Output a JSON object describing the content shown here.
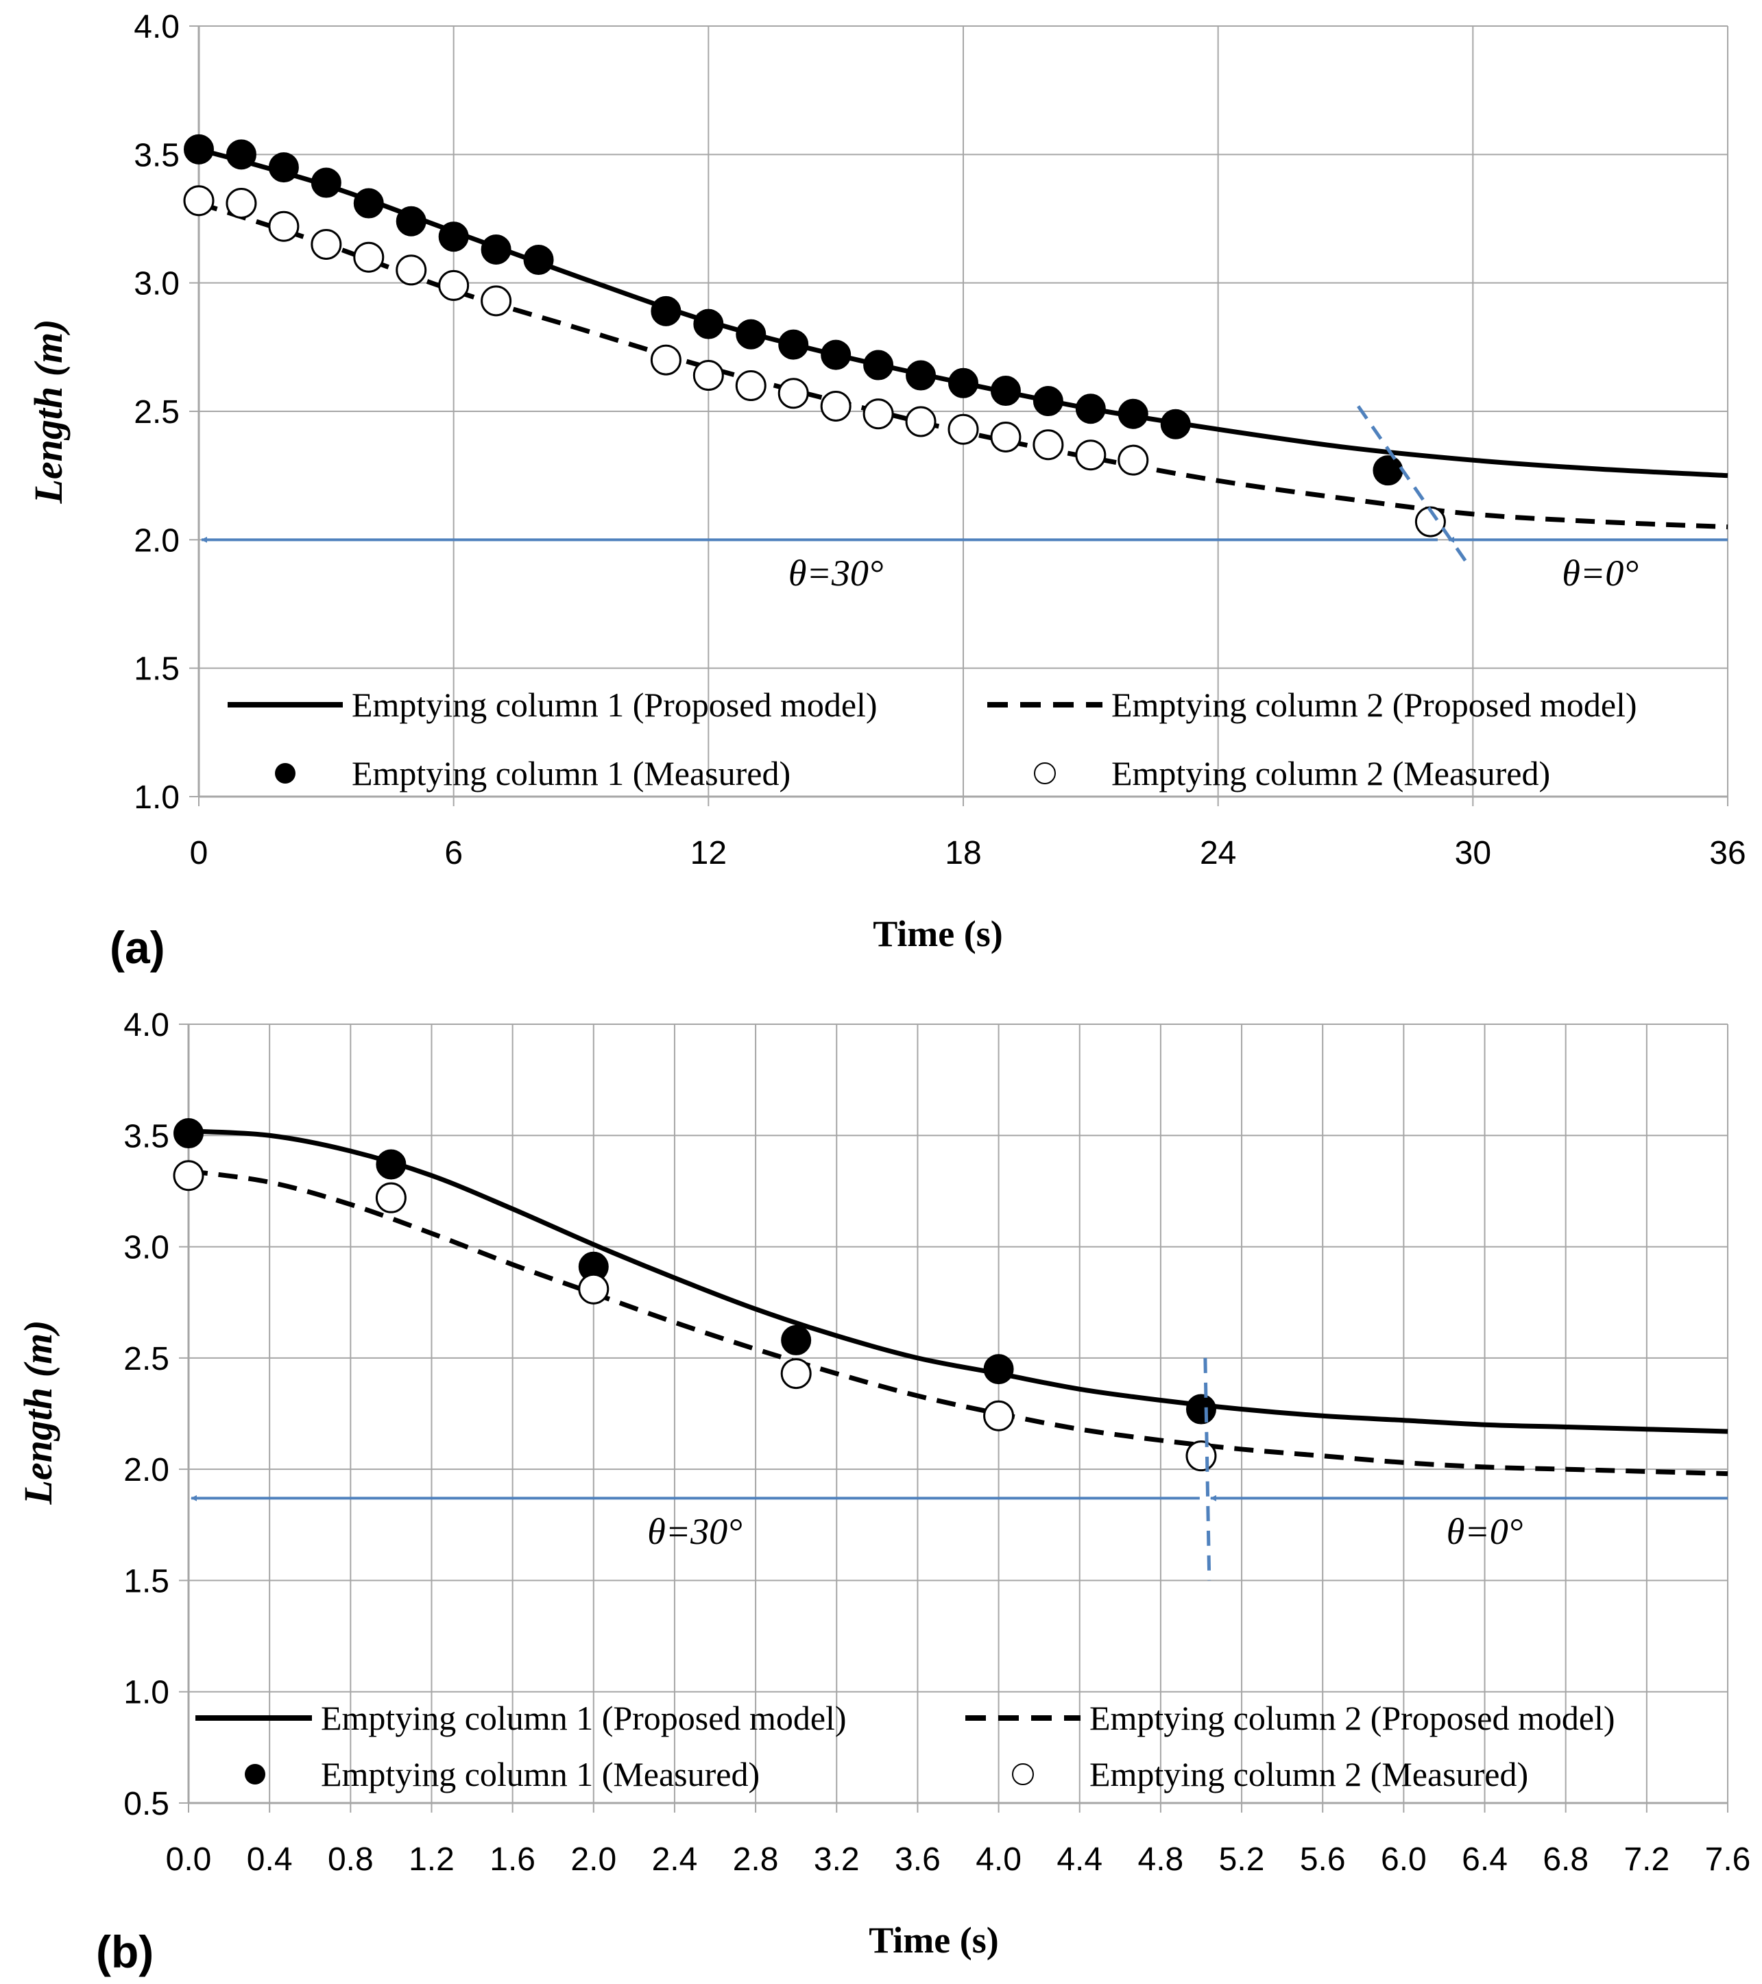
{
  "chart_data": [
    {
      "panel_label": "(a)",
      "type": "line",
      "xlabel": "Time (s)",
      "ylabel": "Length (m)",
      "xlim": [
        0,
        36
      ],
      "ylim": [
        1.0,
        4.0
      ],
      "xticks": [
        "0",
        "6",
        "12",
        "18",
        "24",
        "30",
        "36"
      ],
      "yticks": [
        "1.0",
        "1.5",
        "2.0",
        "2.5",
        "3.0",
        "3.5",
        "4.0"
      ],
      "grid": true,
      "legend": [
        {
          "label": "Emptying column 1 (Proposed model)",
          "style": "solid-line"
        },
        {
          "label": "Emptying column 2 (Proposed model)",
          "style": "dashed-line"
        },
        {
          "label": "Emptying column 1 (Measured)",
          "style": "filled-circle"
        },
        {
          "label": "Emptying column 2 (Measured)",
          "style": "open-circle"
        }
      ],
      "series": [
        {
          "name": "Emptying column 1 (Proposed model)",
          "kind": "line",
          "dash": "solid",
          "x": [
            0,
            3,
            6,
            9,
            12,
            15,
            18,
            21,
            24,
            27,
            30,
            33,
            36
          ],
          "y": [
            3.52,
            3.38,
            3.2,
            3.02,
            2.85,
            2.72,
            2.61,
            2.51,
            2.43,
            2.36,
            2.31,
            2.275,
            2.25
          ]
        },
        {
          "name": "Emptying column 2 (Proposed model)",
          "kind": "line",
          "dash": "dashed",
          "x": [
            0,
            3,
            6,
            9,
            12,
            15,
            18,
            21,
            24,
            27,
            30,
            33,
            36
          ],
          "y": [
            3.31,
            3.15,
            2.97,
            2.82,
            2.67,
            2.54,
            2.42,
            2.32,
            2.23,
            2.16,
            2.1,
            2.07,
            2.05
          ]
        },
        {
          "name": "Emptying column 1 (Measured)",
          "kind": "scatter",
          "marker": "filled",
          "x": [
            0,
            1,
            2,
            3,
            4,
            5,
            6,
            7,
            8,
            11,
            12,
            13,
            14,
            15,
            16,
            17,
            18,
            19,
            20,
            21,
            22,
            23,
            28
          ],
          "y": [
            3.52,
            3.5,
            3.45,
            3.39,
            3.31,
            3.24,
            3.18,
            3.13,
            3.09,
            2.89,
            2.84,
            2.8,
            2.76,
            2.72,
            2.68,
            2.64,
            2.61,
            2.58,
            2.54,
            2.51,
            2.49,
            2.45,
            2.27
          ]
        },
        {
          "name": "Emptying column 2 (Measured)",
          "kind": "scatter",
          "marker": "open",
          "x": [
            0,
            1,
            2,
            3,
            4,
            5,
            6,
            7,
            11,
            12,
            13,
            14,
            15,
            16,
            17,
            18,
            19,
            20,
            21,
            22,
            29
          ],
          "y": [
            3.32,
            3.31,
            3.22,
            3.15,
            3.1,
            3.05,
            2.99,
            2.93,
            2.7,
            2.64,
            2.6,
            2.57,
            2.52,
            2.49,
            2.46,
            2.43,
            2.4,
            2.37,
            2.33,
            2.31,
            2.07
          ]
        }
      ],
      "annotations": {
        "arrow_y": 2.0,
        "divider": {
          "x": 29.3,
          "y_top": 2.52,
          "y_bottom": 1.9,
          "x_top": 27.3,
          "x_bottom": 29.9
        },
        "left_text": "θ=30°",
        "left_text_pos": [
          15,
          1.87
        ],
        "right_text": "θ=0°",
        "right_text_pos": [
          33,
          1.87
        ]
      }
    },
    {
      "panel_label": "(b)",
      "type": "line",
      "xlabel": "Time (s)",
      "ylabel": "Length (m)",
      "xlim": [
        0,
        7.6
      ],
      "ylim": [
        0.5,
        4.0
      ],
      "xticks": [
        "0.0",
        "0.4",
        "0.8",
        "1.2",
        "1.6",
        "2.0",
        "2.4",
        "2.8",
        "3.2",
        "3.6",
        "4.0",
        "4.4",
        "4.8",
        "5.2",
        "5.6",
        "6.0",
        "6.4",
        "6.8",
        "7.2",
        "7.6"
      ],
      "yticks": [
        "0.5",
        "1.0",
        "1.5",
        "2.0",
        "2.5",
        "3.0",
        "3.5",
        "4.0"
      ],
      "grid": true,
      "legend": [
        {
          "label": "Emptying column 1 (Proposed model)",
          "style": "solid-line"
        },
        {
          "label": "Emptying column 2 (Proposed model)",
          "style": "dashed-line"
        },
        {
          "label": "Emptying column 1 (Measured)",
          "style": "filled-circle"
        },
        {
          "label": "Emptying column 2 (Measured)",
          "style": "open-circle"
        }
      ],
      "series": [
        {
          "name": "Emptying column 1 (Proposed model)",
          "kind": "line",
          "dash": "solid",
          "x": [
            0,
            0.4,
            0.8,
            1.2,
            1.6,
            2.0,
            2.4,
            2.8,
            3.2,
            3.6,
            4.0,
            4.4,
            4.8,
            5.2,
            5.6,
            6.0,
            6.4,
            6.8,
            7.2,
            7.6
          ],
          "y": [
            3.52,
            3.5,
            3.43,
            3.32,
            3.17,
            3.01,
            2.86,
            2.72,
            2.6,
            2.5,
            2.43,
            2.36,
            2.31,
            2.27,
            2.24,
            2.22,
            2.2,
            2.19,
            2.18,
            2.17
          ]
        },
        {
          "name": "Emptying column 2 (Proposed model)",
          "kind": "line",
          "dash": "dashed",
          "x": [
            0,
            0.4,
            0.8,
            1.2,
            1.6,
            2.0,
            2.4,
            2.8,
            3.2,
            3.6,
            4.0,
            4.4,
            4.8,
            5.2,
            5.6,
            6.0,
            6.4,
            6.8,
            7.2,
            7.6
          ],
          "y": [
            3.34,
            3.29,
            3.19,
            3.06,
            2.92,
            2.79,
            2.66,
            2.54,
            2.43,
            2.33,
            2.25,
            2.18,
            2.13,
            2.09,
            2.06,
            2.03,
            2.01,
            2.0,
            1.99,
            1.98
          ]
        },
        {
          "name": "Emptying column 1 (Measured)",
          "kind": "scatter",
          "marker": "filled",
          "x": [
            0,
            1,
            2,
            3,
            4,
            5
          ],
          "y": [
            3.51,
            3.37,
            2.91,
            2.58,
            2.45,
            2.27
          ]
        },
        {
          "name": "Emptying column 2 (Measured)",
          "kind": "scatter",
          "marker": "open",
          "x": [
            0,
            1,
            2,
            3,
            4,
            5
          ],
          "y": [
            3.32,
            3.22,
            2.81,
            2.43,
            2.24,
            2.06
          ]
        }
      ],
      "annotations": {
        "arrow_y": 1.87,
        "divider": {
          "x": 5.02,
          "y_top": 2.5,
          "y_bottom": 1.5,
          "x_top": 5.02,
          "x_bottom": 5.04
        },
        "left_text": "θ=30°",
        "left_text_pos": [
          2.5,
          1.72
        ],
        "right_text": "θ=0°",
        "right_text_pos": [
          6.4,
          1.72
        ]
      }
    }
  ],
  "colors": {
    "grid": "#a6a6a6",
    "axis": "#a6a6a6",
    "series": "#000000",
    "arrow": "#4f81bd",
    "divider": "#4f81bd"
  }
}
